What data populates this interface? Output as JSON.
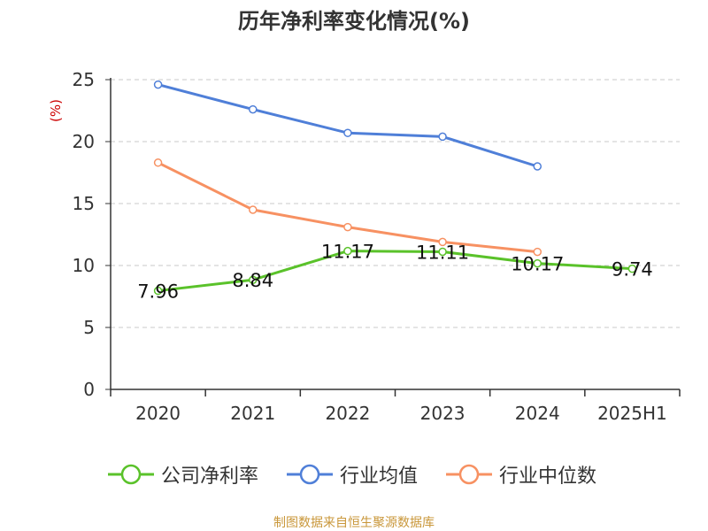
{
  "chart_data": {
    "type": "line",
    "title": "历年净利率变化情况(%)",
    "ylabel": "(%)",
    "xlabel": "",
    "categories": [
      "2020",
      "2021",
      "2022",
      "2023",
      "2024",
      "2025H1"
    ],
    "ylim": [
      0,
      25
    ],
    "yticks": [
      0,
      5,
      10,
      15,
      20,
      25
    ],
    "grid": true,
    "legend_position": "bottom",
    "series": [
      {
        "name": "公司净利率",
        "color": "#5ac22a",
        "values": [
          7.96,
          8.84,
          11.17,
          11.11,
          10.17,
          9.74
        ],
        "labels": [
          "7.96",
          "8.84",
          "11.17",
          "11.11",
          "10.17",
          "9.74"
        ]
      },
      {
        "name": "行业均值",
        "color": "#4f7fd8",
        "values": [
          24.6,
          22.6,
          20.7,
          20.4,
          18.0,
          null
        ]
      },
      {
        "name": "行业中位数",
        "color": "#f79162",
        "values": [
          18.3,
          14.5,
          13.1,
          11.9,
          11.1,
          null
        ]
      }
    ]
  },
  "source": "制图数据来自恒生聚源数据库"
}
